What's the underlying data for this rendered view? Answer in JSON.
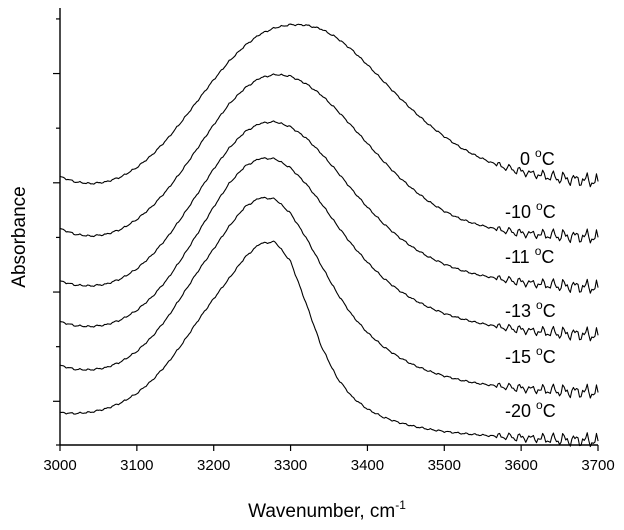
{
  "chart_data": {
    "type": "line",
    "title": "",
    "xlabel": "Wavenumber, cm",
    "xlabel_superscript": "-1",
    "ylabel": "Absorbance",
    "xlim": [
      3000,
      3700
    ],
    "ylim": [
      0,
      1
    ],
    "x_ticks": [
      3000,
      3100,
      3200,
      3300,
      3400,
      3500,
      3600,
      3700
    ],
    "x_tick_labels": [
      "3000",
      "3100",
      "3200",
      "3300",
      "3400",
      "3500",
      "3600",
      "3700"
    ],
    "y_major_ticks": [
      0.1,
      0.35,
      0.6,
      0.85
    ],
    "y_minor_ticks": [
      0.0,
      0.225,
      0.475,
      0.725,
      0.975
    ],
    "grid": false,
    "legend": "none",
    "x": [
      3000,
      3020,
      3040,
      3060,
      3080,
      3100,
      3120,
      3140,
      3160,
      3180,
      3200,
      3220,
      3240,
      3260,
      3280,
      3300,
      3320,
      3340,
      3360,
      3380,
      3400,
      3420,
      3440,
      3460,
      3480,
      3500,
      3520,
      3540,
      3560,
      3580,
      3600,
      3620,
      3640,
      3660,
      3680,
      3700
    ],
    "series": [
      {
        "name": "0 °C",
        "label_text": "0 ",
        "label_degree": "o",
        "label_unit": "C",
        "values": [
          0.614,
          0.602,
          0.598,
          0.602,
          0.614,
          0.635,
          0.664,
          0.701,
          0.744,
          0.79,
          0.836,
          0.878,
          0.913,
          0.94,
          0.955,
          0.962,
          0.961,
          0.952,
          0.932,
          0.904,
          0.87,
          0.834,
          0.798,
          0.764,
          0.733,
          0.706,
          0.682,
          0.663,
          0.647,
          0.635,
          0.626,
          0.619,
          0.613,
          0.609,
          0.606,
          0.604
        ]
      },
      {
        "name": "-10 °C",
        "label_text": "-10 ",
        "label_degree": "o",
        "label_unit": "C",
        "values": [
          0.495,
          0.482,
          0.478,
          0.482,
          0.494,
          0.516,
          0.546,
          0.585,
          0.631,
          0.682,
          0.733,
          0.78,
          0.816,
          0.84,
          0.848,
          0.844,
          0.827,
          0.801,
          0.767,
          0.729,
          0.69,
          0.651,
          0.615,
          0.584,
          0.557,
          0.535,
          0.518,
          0.506,
          0.497,
          0.49,
          0.485,
          0.482,
          0.48,
          0.478,
          0.477,
          0.476
        ]
      },
      {
        "name": "-11 °C",
        "label_text": "-11 ",
        "label_degree": "o",
        "label_unit": "C",
        "values": [
          0.375,
          0.366,
          0.364,
          0.368,
          0.381,
          0.403,
          0.435,
          0.476,
          0.525,
          0.578,
          0.632,
          0.679,
          0.716,
          0.736,
          0.74,
          0.728,
          0.703,
          0.667,
          0.627,
          0.584,
          0.544,
          0.508,
          0.477,
          0.451,
          0.43,
          0.414,
          0.401,
          0.391,
          0.384,
          0.378,
          0.373,
          0.369,
          0.366,
          0.364,
          0.362,
          0.361
        ]
      },
      {
        "name": "-13 °C",
        "label_text": "-13 ",
        "label_degree": "o",
        "label_unit": "C",
        "values": [
          0.282,
          0.273,
          0.271,
          0.275,
          0.287,
          0.308,
          0.339,
          0.38,
          0.431,
          0.487,
          0.545,
          0.598,
          0.637,
          0.656,
          0.655,
          0.634,
          0.598,
          0.553,
          0.504,
          0.458,
          0.418,
          0.383,
          0.355,
          0.333,
          0.315,
          0.301,
          0.29,
          0.281,
          0.274,
          0.268,
          0.264,
          0.26,
          0.257,
          0.255,
          0.253,
          0.252
        ]
      },
      {
        "name": "-15 °C",
        "label_text": "-15 ",
        "label_degree": "o",
        "label_unit": "C",
        "values": [
          0.182,
          0.173,
          0.172,
          0.177,
          0.191,
          0.214,
          0.248,
          0.292,
          0.345,
          0.399,
          0.449,
          0.5,
          0.544,
          0.566,
          0.563,
          0.53,
          0.475,
          0.411,
          0.349,
          0.297,
          0.257,
          0.226,
          0.202,
          0.183,
          0.169,
          0.158,
          0.149,
          0.142,
          0.137,
          0.133,
          0.13,
          0.127,
          0.125,
          0.123,
          0.122,
          0.121
        ]
      },
      {
        "name": "-20 °C",
        "label_text": "-20 ",
        "label_degree": "o",
        "label_unit": "C",
        "values": [
          0.074,
          0.072,
          0.075,
          0.083,
          0.097,
          0.118,
          0.148,
          0.187,
          0.234,
          0.286,
          0.335,
          0.381,
          0.428,
          0.461,
          0.465,
          0.42,
          0.325,
          0.226,
          0.155,
          0.11,
          0.082,
          0.064,
          0.052,
          0.043,
          0.036,
          0.031,
          0.027,
          0.024,
          0.021,
          0.019,
          0.017,
          0.015,
          0.013,
          0.012,
          0.011,
          0.01
        ]
      }
    ]
  }
}
